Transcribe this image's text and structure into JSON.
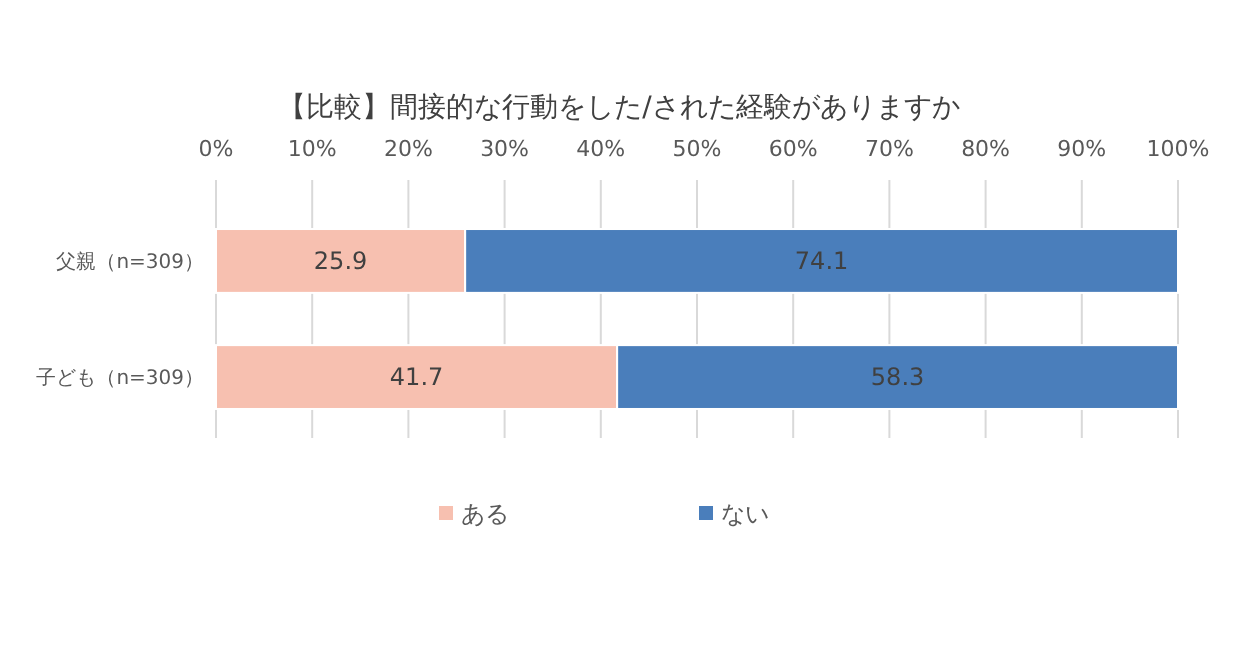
{
  "chart_data": {
    "type": "bar",
    "orientation": "horizontal",
    "stacked": true,
    "title": "【比較】間接的な行動をした/された経験がありますか",
    "categories": [
      "父親（n=309）",
      "子ども（n=309）"
    ],
    "series": [
      {
        "name": "ある",
        "color": "#f7c0b0",
        "values": [
          25.9,
          41.7
        ]
      },
      {
        "name": "ない",
        "color": "#4a7ebb",
        "values": [
          74.1,
          58.3
        ]
      }
    ],
    "xlim": [
      0,
      100
    ],
    "xticks": [
      {
        "value": 0,
        "label": "0%"
      },
      {
        "value": 10,
        "label": "10%"
      },
      {
        "value": 20,
        "label": "20%"
      },
      {
        "value": 30,
        "label": "30%"
      },
      {
        "value": 40,
        "label": "40%"
      },
      {
        "value": 50,
        "label": "50%"
      },
      {
        "value": 60,
        "label": "60%"
      },
      {
        "value": 70,
        "label": "70%"
      },
      {
        "value": 80,
        "label": "80%"
      },
      {
        "value": 90,
        "label": "90%"
      },
      {
        "value": 100,
        "label": "100%"
      }
    ],
    "grid": "x",
    "legend": "bottom",
    "data_labels": true
  }
}
